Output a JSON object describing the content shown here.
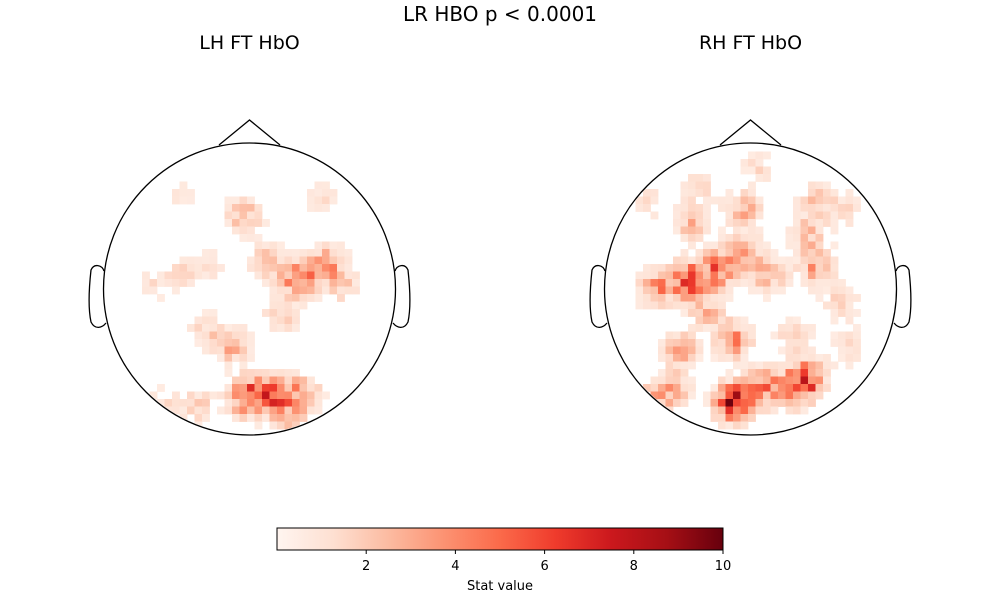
{
  "figure": {
    "title": "LR HBO p < 0.0001"
  },
  "chart_data": [
    {
      "type": "heatmap",
      "title": "LH FT HbO",
      "grid": false,
      "colormap": "Reds",
      "vmin": 0,
      "vmax": 10,
      "hotspots": [
        {
          "x": -0.01,
          "y": -0.74,
          "value": 6.5
        },
        {
          "x": 0.17,
          "y": -0.73,
          "value": 4.5
        },
        {
          "x": 0.36,
          "y": -0.72,
          "value": 3.5
        },
        {
          "x": 0.25,
          "y": -0.88,
          "value": 2.5
        },
        {
          "x": -0.12,
          "y": -0.39,
          "value": 3.0
        },
        {
          "x": -0.3,
          "y": -0.28,
          "value": 1.5
        },
        {
          "x": -0.62,
          "y": -0.82,
          "value": 1.8
        },
        {
          "x": -0.36,
          "y": -0.8,
          "value": 2.0
        },
        {
          "x": 0.34,
          "y": 0.08,
          "value": 5.5
        },
        {
          "x": 0.55,
          "y": 0.17,
          "value": 3.5
        },
        {
          "x": 0.22,
          "y": -0.18,
          "value": 2.0
        },
        {
          "x": 0.65,
          "y": 0.02,
          "value": 1.8
        },
        {
          "x": 0.12,
          "y": 0.19,
          "value": 2.2
        },
        {
          "x": -0.04,
          "y": 0.5,
          "value": 2.8
        },
        {
          "x": 0.5,
          "y": 0.62,
          "value": 1.2
        },
        {
          "x": -0.46,
          "y": 0.12,
          "value": 1.4
        },
        {
          "x": -0.65,
          "y": 0.02,
          "value": 1.2
        },
        {
          "x": -0.25,
          "y": 0.16,
          "value": 1.0
        },
        {
          "x": -0.46,
          "y": 0.65,
          "value": 0.9
        }
      ]
    },
    {
      "type": "heatmap",
      "title": "RH FT HbO",
      "grid": false,
      "colormap": "Reds",
      "vmin": 0,
      "vmax": 10,
      "hotspots": [
        {
          "x": -0.43,
          "y": 0.06,
          "value": 6.0
        },
        {
          "x": -0.65,
          "y": 0.01,
          "value": 4.0
        },
        {
          "x": -0.23,
          "y": 0.13,
          "value": 5.0
        },
        {
          "x": -0.05,
          "y": 0.25,
          "value": 3.5
        },
        {
          "x": -0.12,
          "y": -0.35,
          "value": 4.0
        },
        {
          "x": -0.48,
          "y": -0.42,
          "value": 3.0
        },
        {
          "x": -0.12,
          "y": -0.78,
          "value": 8.0
        },
        {
          "x": 0.09,
          "y": -0.68,
          "value": 5.0
        },
        {
          "x": 0.32,
          "y": -0.68,
          "value": 5.5
        },
        {
          "x": 0.4,
          "y": -0.6,
          "value": 4.0
        },
        {
          "x": -0.55,
          "y": -0.7,
          "value": 3.5
        },
        {
          "x": -0.73,
          "y": -0.82,
          "value": 4.0
        },
        {
          "x": 0.12,
          "y": 0.1,
          "value": 3.0
        },
        {
          "x": 0.46,
          "y": 0.15,
          "value": 3.5
        },
        {
          "x": 0.4,
          "y": 0.38,
          "value": 2.5
        },
        {
          "x": 0.62,
          "y": -0.1,
          "value": 2.0
        },
        {
          "x": -0.05,
          "y": 0.55,
          "value": 3.0
        },
        {
          "x": -0.4,
          "y": 0.45,
          "value": 2.5
        },
        {
          "x": 0.45,
          "y": 0.62,
          "value": 2.0
        },
        {
          "x": -0.36,
          "y": 0.7,
          "value": 1.5
        },
        {
          "x": 0.3,
          "y": -0.32,
          "value": 2.0
        },
        {
          "x": -0.3,
          "y": -0.15,
          "value": 2.5
        },
        {
          "x": 0.05,
          "y": 0.85,
          "value": 1.5
        },
        {
          "x": 0.68,
          "y": -0.4,
          "value": 1.5
        },
        {
          "x": 0.65,
          "y": 0.55,
          "value": 1.5
        },
        {
          "x": -0.7,
          "y": 0.6,
          "value": 1.2
        }
      ]
    }
  ],
  "colorbar": {
    "label": "Stat value",
    "ticks": [
      2,
      4,
      6,
      8,
      10
    ],
    "vmin": 0,
    "vmax": 10
  }
}
